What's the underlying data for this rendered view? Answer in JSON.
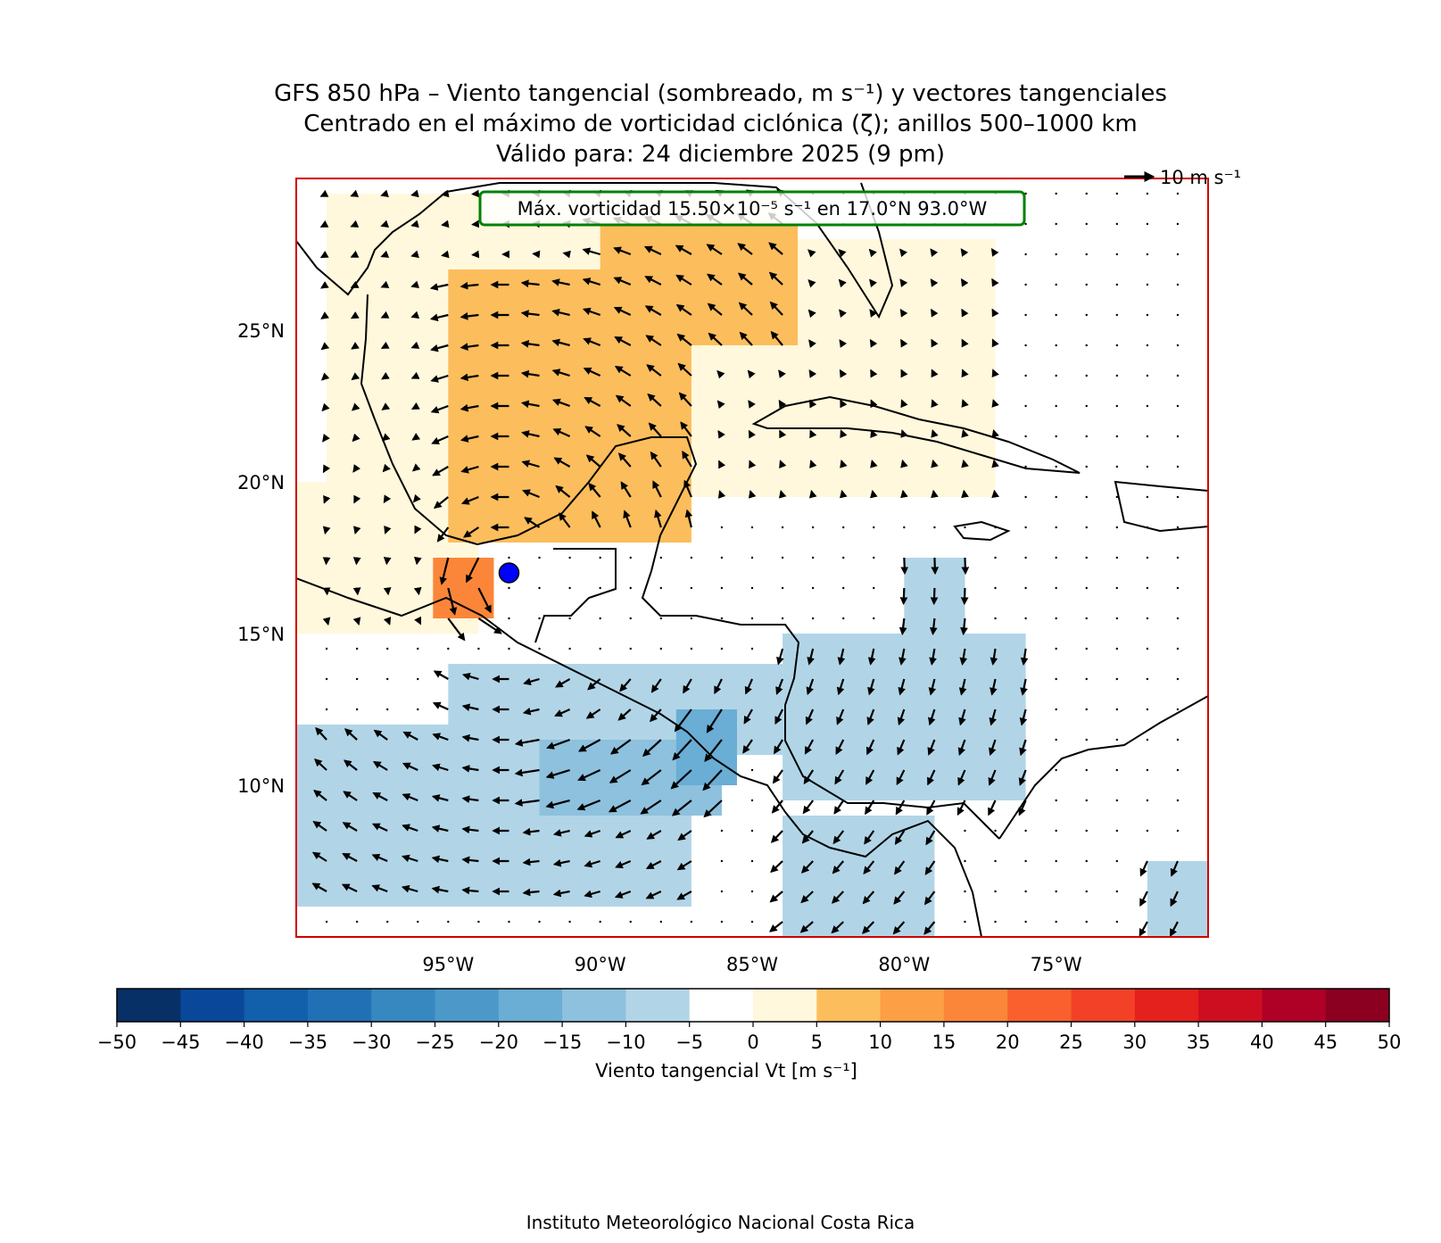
{
  "title": {
    "line1": "GFS 850 hPa – Viento tangencial (sombreado, m s⁻¹) y vectores tangenciales",
    "line2": "Centrado en el máximo de vorticidad ciclónica (ζ); anillos 500–1000 km",
    "line3": "Válido para: 24 diciembre 2025 (9 pm)"
  },
  "annotation": {
    "max_vorticity_text": "Máx. vorticidad 15.50×10⁻⁵ s⁻¹ en 17.0°N 93.0°W",
    "box_color": "#008000"
  },
  "center": {
    "lat": 17.0,
    "lon": -93.0,
    "marker_color": "#0000ff"
  },
  "quiver_key": {
    "label": "10 m s⁻¹",
    "speed": 10
  },
  "axes": {
    "lon_range": [
      -100,
      -70
    ],
    "lat_range": [
      5,
      30
    ],
    "lon_ticks": [
      -95,
      -90,
      -85,
      -80,
      -75
    ],
    "lon_tick_labels": [
      "95°W",
      "90°W",
      "85°W",
      "80°W",
      "75°W"
    ],
    "lat_ticks": [
      25,
      20,
      15,
      10
    ],
    "lat_tick_labels": [
      "25°N",
      "20°N",
      "15°N",
      "10°N"
    ],
    "frame_color": "#d00000"
  },
  "colorbar": {
    "label": "Viento tangencial Vt [m s⁻¹]",
    "levels": [
      -50,
      -45,
      -40,
      -35,
      -30,
      -25,
      -20,
      -15,
      -10,
      -5,
      0,
      5,
      10,
      15,
      20,
      25,
      30,
      35,
      40,
      45,
      50
    ],
    "tick_labels": [
      "−50",
      "−45",
      "−40",
      "−35",
      "−30",
      "−25",
      "−20",
      "−15",
      "−10",
      "−5",
      "0",
      "5",
      "10",
      "15",
      "20",
      "25",
      "30",
      "35",
      "40",
      "45",
      "50"
    ],
    "colors": [
      "#073067",
      "#08479a",
      "#125fac",
      "#2170b6",
      "#3787c0",
      "#4b98c9",
      "#6aadd5",
      "#8dc1dd",
      "#b1d5e7",
      "#ffffff",
      "#fff8dc",
      "#fcbd5c",
      "#fd9f45",
      "#fb8639",
      "#f9602d",
      "#f34127",
      "#e5211e",
      "#cd0e21",
      "#af0026",
      "#8b0021"
    ]
  },
  "shading_regions": [
    {
      "name": "gulf-light",
      "lon": [
        -99,
        -84
      ],
      "lat": [
        19.5,
        29.5
      ],
      "value": 2
    },
    {
      "name": "gulf-east-light",
      "lon": [
        -84,
        -77
      ],
      "lat": [
        19.5,
        28
      ],
      "value": 2
    },
    {
      "name": "mexico-light",
      "lon": [
        -100,
        -94
      ],
      "lat": [
        15,
        20
      ],
      "value": 2
    },
    {
      "name": "gulf-core",
      "lon": [
        -95,
        -87
      ],
      "lat": [
        18,
        27
      ],
      "value": 9
    },
    {
      "name": "gulf-north-core",
      "lon": [
        -90,
        -83.5
      ],
      "lat": [
        24.5,
        28.5
      ],
      "value": 9
    },
    {
      "name": "isthmus-core",
      "lon": [
        -95.5,
        -93.5
      ],
      "lat": [
        15.5,
        17.5
      ],
      "value": 17
    },
    {
      "name": "pacific-blue",
      "lon": [
        -100,
        -87
      ],
      "lat": [
        6,
        12
      ],
      "value": -8
    },
    {
      "name": "pacific-blue-2",
      "lon": [
        -95,
        -84
      ],
      "lat": [
        11,
        14
      ],
      "value": -8
    },
    {
      "name": "pacific-mid",
      "lon": [
        -92,
        -86
      ],
      "lat": [
        9,
        11.5
      ],
      "value": -13
    },
    {
      "name": "pacific-deep",
      "lon": [
        -87.5,
        -85.5
      ],
      "lat": [
        10,
        12.5
      ],
      "value": -18
    },
    {
      "name": "caribbean-blue",
      "lon": [
        -84,
        -76
      ],
      "lat": [
        9.5,
        15
      ],
      "value": -8
    },
    {
      "name": "caribbean-blue-2",
      "lon": [
        -80,
        -78
      ],
      "lat": [
        15,
        17.5
      ],
      "value": -8
    },
    {
      "name": "colombia-blue",
      "lon": [
        -84,
        -79
      ],
      "lat": [
        5,
        9
      ],
      "value": -8
    },
    {
      "name": "venezuela-blue",
      "lon": [
        -72,
        -70
      ],
      "lat": [
        5,
        7.5
      ],
      "value": -8
    }
  ],
  "footer": "Instituto Meteorológico Nacional Costa Rica"
}
